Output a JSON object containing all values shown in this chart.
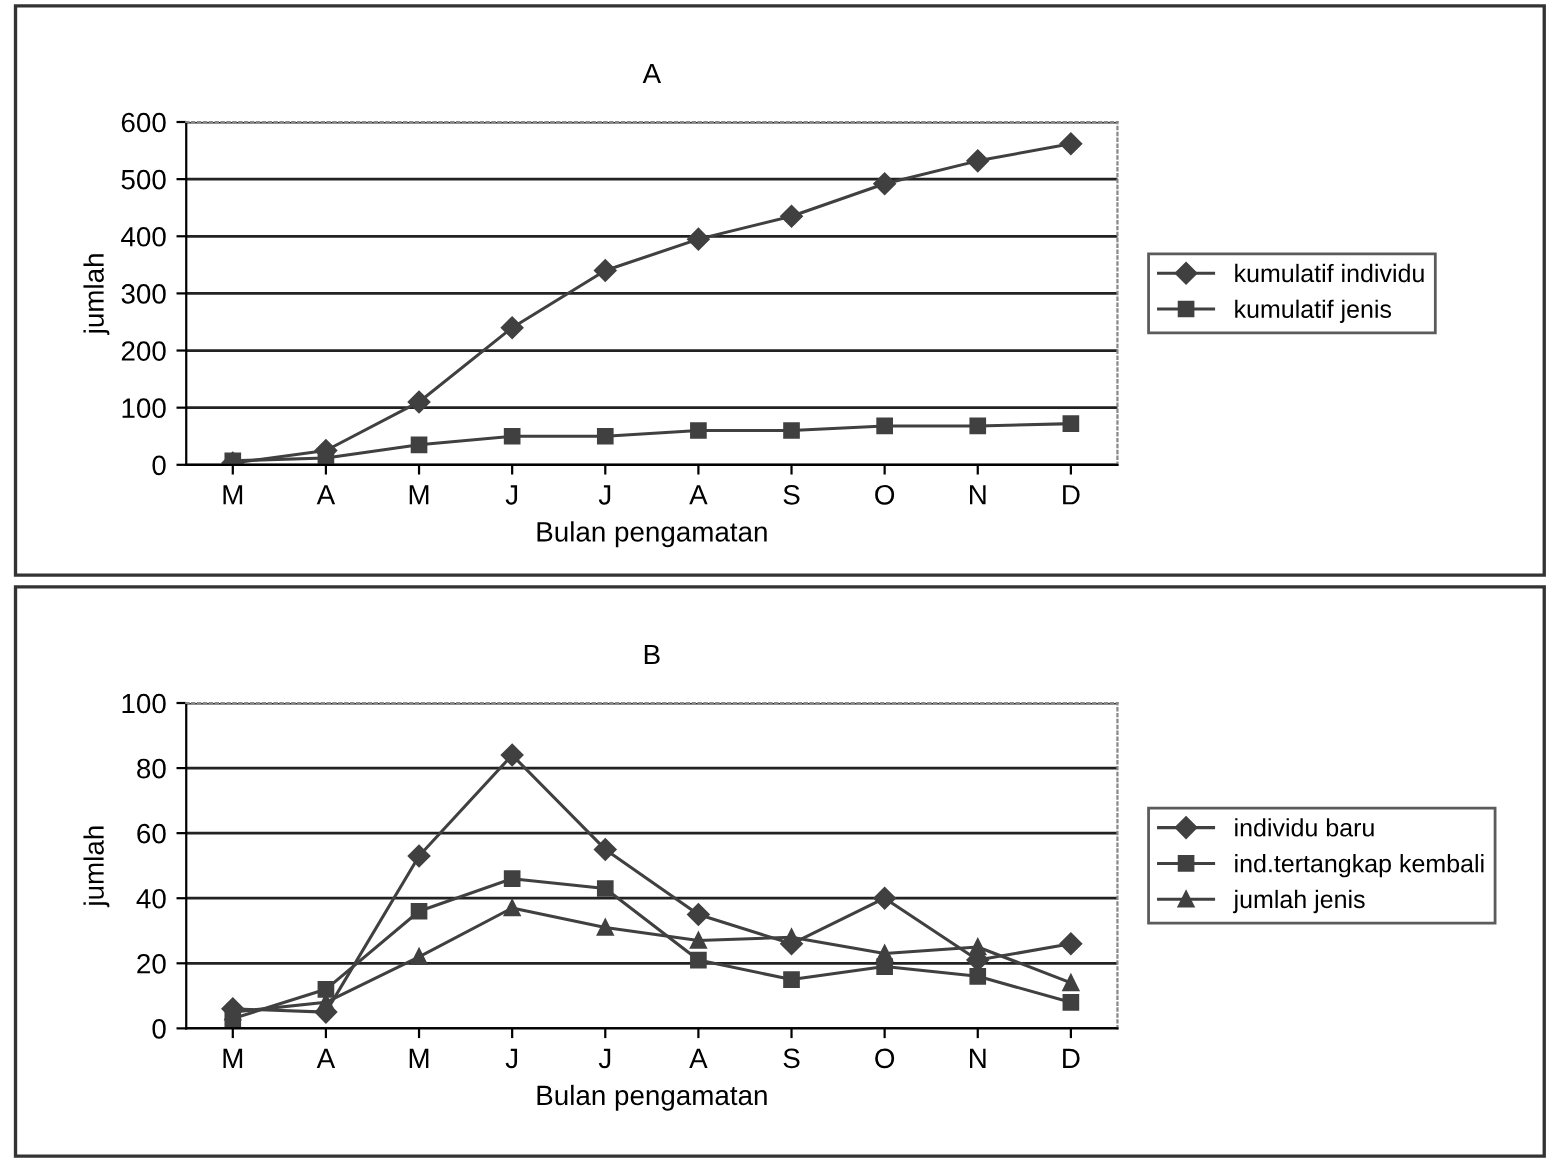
{
  "chart_data": [
    {
      "type": "line",
      "title": "A",
      "xlabel": "Bulan pengamatan",
      "ylabel": "jumlah",
      "categories": [
        "M",
        "A",
        "M",
        "J",
        "J",
        "A",
        "S",
        "O",
        "N",
        "D"
      ],
      "series": [
        {
          "name": "kumulatif individu",
          "color": "#404040",
          "marker": "diamond",
          "values": [
            3,
            25,
            110,
            240,
            340,
            395,
            435,
            492,
            532,
            562
          ]
        },
        {
          "name": "kumulatif jenis",
          "color": "#404040",
          "marker": "square",
          "values": [
            7,
            12,
            35,
            50,
            50,
            60,
            60,
            68,
            68,
            72
          ]
        }
      ],
      "ylim": [
        0,
        600
      ],
      "yticks": [
        0,
        100,
        200,
        300,
        400,
        500,
        600
      ],
      "grid": "y",
      "legend": "right"
    },
    {
      "type": "line",
      "title": "B",
      "xlabel": "Bulan pengamatan",
      "ylabel": "jumlah",
      "categories": [
        "M",
        "A",
        "M",
        "J",
        "J",
        "A",
        "S",
        "O",
        "N",
        "D"
      ],
      "series": [
        {
          "name": "individu baru",
          "color": "#404040",
          "marker": "diamond",
          "values": [
            6,
            5,
            53,
            84,
            55,
            35,
            26,
            40,
            21,
            26
          ]
        },
        {
          "name": "ind.tertangkap kembali",
          "color": "#404040",
          "marker": "square",
          "values": [
            3,
            12,
            36,
            46,
            43,
            21,
            15,
            19,
            16,
            8
          ]
        },
        {
          "name": "jumlah jenis",
          "color": "#404040",
          "marker": "triangle",
          "values": [
            5,
            8,
            22,
            37,
            31,
            27,
            28,
            23,
            25,
            14
          ]
        }
      ],
      "ylim": [
        0,
        100
      ],
      "yticks": [
        0,
        20,
        40,
        60,
        80,
        100
      ],
      "grid": "y",
      "legend": "right"
    }
  ]
}
